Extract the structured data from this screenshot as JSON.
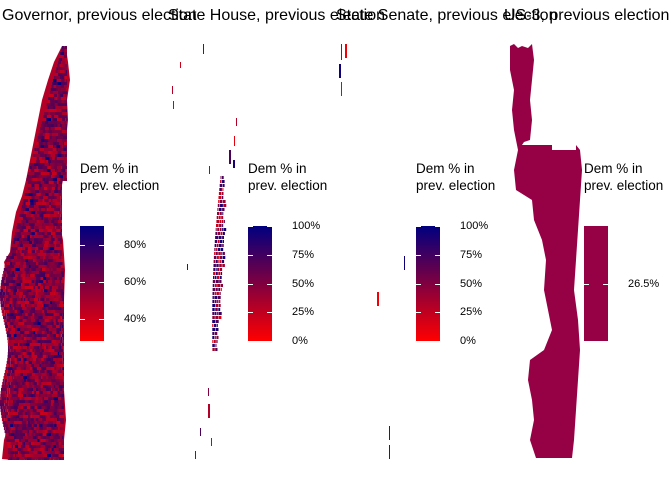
{
  "chart_data": [
    {
      "type": "heatmap",
      "title": "Governor, previous election",
      "legend": {
        "title_lines": [
          "Dem % in",
          "prev. election"
        ],
        "labels": [
          "80%",
          "60%",
          "40%"
        ],
        "label_values": [
          0.8,
          0.6,
          0.4
        ],
        "range": [
          0.28,
          0.9
        ]
      },
      "colors": {
        "low": "#ff0000",
        "high": "#00007f"
      }
    },
    {
      "type": "heatmap",
      "title": "State House, previous election",
      "legend": {
        "title_lines": [
          "Dem % in",
          "prev. election"
        ],
        "labels": [
          "100%",
          "75%",
          "50%",
          "25%",
          "0%"
        ],
        "label_values": [
          1.0,
          0.75,
          0.5,
          0.25,
          0.0
        ],
        "range": [
          0,
          1
        ]
      },
      "colors": {
        "low": "#ff0000",
        "high": "#00007f"
      }
    },
    {
      "type": "heatmap",
      "title": "State Senate, previous election",
      "legend": {
        "title_lines": [
          "Dem % in",
          "prev. election"
        ],
        "labels": [
          "100%",
          "75%",
          "50%",
          "25%",
          "0%"
        ],
        "label_values": [
          1.0,
          0.75,
          0.5,
          0.25,
          0.0
        ],
        "range": [
          0,
          1
        ]
      },
      "colors": {
        "low": "#ff0000",
        "high": "#00007f"
      }
    },
    {
      "type": "heatmap",
      "title": "US-3, previous election",
      "legend": {
        "title_lines": [
          "Dem % in",
          "prev. election"
        ],
        "labels": [
          "26.5%"
        ],
        "label_values": [
          0.265
        ],
        "range": [
          0.265,
          0.265
        ]
      },
      "colors": {
        "single": "#960045"
      }
    }
  ]
}
